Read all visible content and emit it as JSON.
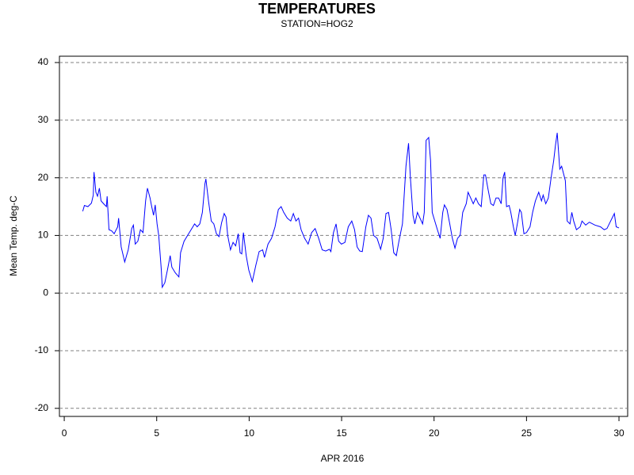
{
  "chart_data": {
    "type": "line",
    "title": "TEMPERATURES",
    "subtitle": "STATION=HOG2",
    "x_label": "APR 2016",
    "y_label": "Mean Temp. deg-C",
    "xlim": [
      -0.26,
      30.47
    ],
    "ylim": [
      -21.4,
      41.1
    ],
    "xticks": [
      0,
      5,
      10,
      15,
      20,
      25,
      30
    ],
    "yticks": [
      -20,
      -10,
      0,
      10,
      20,
      30,
      40
    ],
    "grid": true,
    "series": [
      {
        "color": "#0000ff",
        "x": [
          1.0,
          1.09,
          1.28,
          1.47,
          1.57,
          1.61,
          1.71,
          1.8,
          1.9,
          1.99,
          2.13,
          2.28,
          2.32,
          2.42,
          2.56,
          2.7,
          2.89,
          2.94,
          3.08,
          3.27,
          3.46,
          3.65,
          3.74,
          3.84,
          3.98,
          4.12,
          4.26,
          4.4,
          4.5,
          4.64,
          4.73,
          4.83,
          4.92,
          5.02,
          5.11,
          5.25,
          5.3,
          5.44,
          5.58,
          5.73,
          5.82,
          6.01,
          6.2,
          6.29,
          6.48,
          6.67,
          6.86,
          7.05,
          7.19,
          7.33,
          7.47,
          7.61,
          7.66,
          7.8,
          7.95,
          8.09,
          8.23,
          8.37,
          8.51,
          8.65,
          8.75,
          8.84,
          8.99,
          9.13,
          9.27,
          9.41,
          9.51,
          9.6,
          9.69,
          9.84,
          9.98,
          10.17,
          10.36,
          10.54,
          10.73,
          10.83,
          11.02,
          11.21,
          11.4,
          11.58,
          11.73,
          11.87,
          12.06,
          12.25,
          12.39,
          12.53,
          12.67,
          12.81,
          13.0,
          13.19,
          13.38,
          13.57,
          13.76,
          13.95,
          14.14,
          14.34,
          14.42,
          14.56,
          14.7,
          14.84,
          14.99,
          15.18,
          15.36,
          15.55,
          15.7,
          15.84,
          15.98,
          16.12,
          16.31,
          16.45,
          16.59,
          16.73,
          16.92,
          17.11,
          17.25,
          17.4,
          17.54,
          17.68,
          17.82,
          17.96,
          18.1,
          18.29,
          18.48,
          18.62,
          18.72,
          18.86,
          18.96,
          19.1,
          19.24,
          19.38,
          19.47,
          19.57,
          19.71,
          19.81,
          19.9,
          20.04,
          20.18,
          20.33,
          20.47,
          20.56,
          20.7,
          20.85,
          20.99,
          21.13,
          21.27,
          21.41,
          21.55,
          21.74,
          21.84,
          21.98,
          22.12,
          22.26,
          22.4,
          22.55,
          22.69,
          22.78,
          22.92,
          23.07,
          23.21,
          23.35,
          23.49,
          23.63,
          23.73,
          23.82,
          23.92,
          24.06,
          24.15,
          24.29,
          24.39,
          24.53,
          24.63,
          24.72,
          24.86,
          25.0,
          25.19,
          25.33,
          25.48,
          25.66,
          25.81,
          25.9,
          26.04,
          26.18,
          26.33,
          26.47,
          26.56,
          26.66,
          26.8,
          26.9,
          27.1,
          27.2,
          27.35,
          27.45,
          27.55,
          27.7,
          27.9,
          28.0,
          28.2,
          28.4,
          28.7,
          29.0,
          29.2,
          29.35,
          29.55,
          29.75,
          29.85,
          30.0
        ],
        "values": [
          14.2,
          15.2,
          15,
          15.6,
          17,
          21,
          17.5,
          16.8,
          18.2,
          16,
          15.5,
          15,
          16.8,
          11,
          10.8,
          10.3,
          11.5,
          13,
          8,
          5.4,
          7.5,
          11.2,
          11.8,
          8.5,
          9,
          11,
          10.5,
          16,
          18.2,
          16.5,
          15,
          13.5,
          15.3,
          12,
          10,
          4,
          1,
          1.8,
          4,
          6.5,
          4.5,
          3.5,
          2.8,
          7,
          9,
          10,
          11,
          12,
          11.5,
          12,
          14,
          19,
          19.8,
          16,
          12.5,
          12,
          10.3,
          9.8,
          12.2,
          13.8,
          13.2,
          10,
          7.5,
          8.8,
          8.2,
          10.3,
          7,
          6.8,
          10.5,
          6.5,
          4,
          2,
          4.8,
          7.2,
          7.5,
          6.2,
          8.5,
          9.5,
          11.5,
          14.5,
          15,
          14,
          13,
          12.5,
          13.8,
          12.5,
          13,
          11,
          9.5,
          8.5,
          10.5,
          11.2,
          9.5,
          7.5,
          7.3,
          7.6,
          7.2,
          10.5,
          12,
          9,
          8.5,
          8.8,
          11.5,
          12.5,
          11,
          8,
          7.3,
          7.2,
          11.5,
          13.5,
          13,
          10,
          9.5,
          7.6,
          9.5,
          13.8,
          14,
          11,
          7,
          6.5,
          9,
          12,
          22,
          26,
          20,
          13.5,
          12,
          14,
          13,
          12,
          14,
          26.5,
          27,
          23,
          14,
          12.5,
          11,
          9.5,
          14,
          15.3,
          14.5,
          12,
          9.5,
          7.8,
          9.5,
          10,
          14,
          15.5,
          17.5,
          16.5,
          15.5,
          16.5,
          15.5,
          15,
          20.5,
          20.5,
          18,
          15.5,
          15.2,
          16.5,
          16.5,
          15.5,
          20,
          21,
          15,
          15.2,
          14,
          11.5,
          10,
          12.5,
          14.5,
          14,
          10.3,
          10.5,
          11.5,
          14,
          16,
          17.5,
          16,
          17,
          15.5,
          16.5,
          20,
          23,
          25.5,
          27.8,
          21.5,
          22,
          19.5,
          12.5,
          12,
          14,
          12.5,
          11,
          11.5,
          12.5,
          11.8,
          12.3,
          11.8,
          11.5,
          11,
          11.2,
          12.5,
          13.8,
          11.5,
          11.3
        ]
      }
    ]
  }
}
